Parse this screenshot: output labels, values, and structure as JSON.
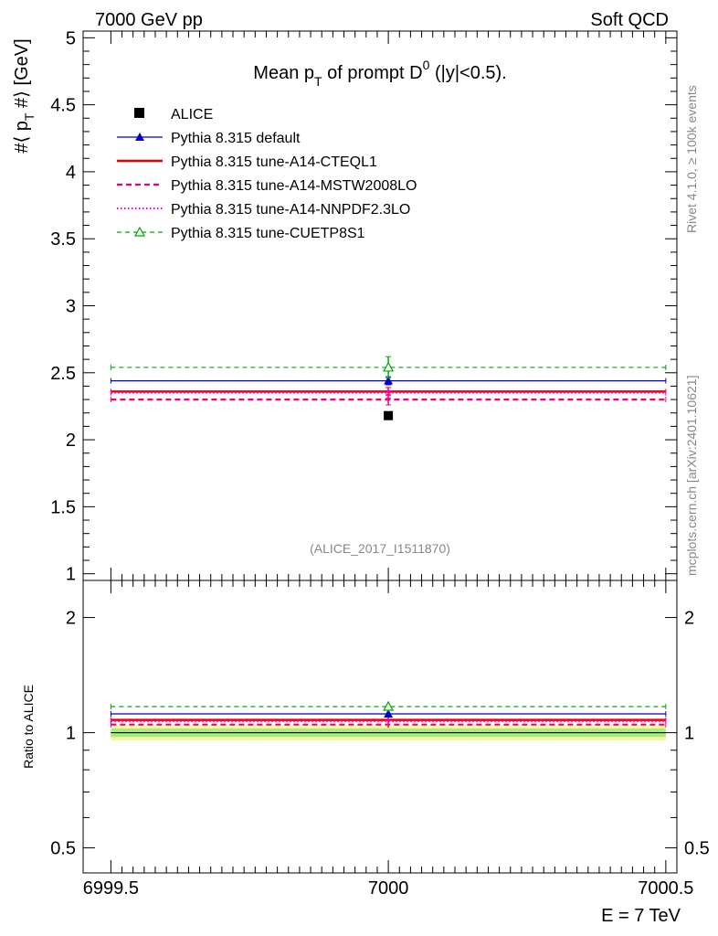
{
  "header": {
    "left": "7000 GeV pp",
    "right": "Soft QCD"
  },
  "side": {
    "rivet": "Rivet 4.1.0, ≥ 100k events",
    "mcplots": "mcplots.cern.ch [arXiv:2401.10621]"
  },
  "chart_data": [
    {
      "type": "line",
      "panel": "main",
      "title_parts": {
        "pre": "Mean p",
        "sub": "T",
        "mid": " of prompt D",
        "sup": "0",
        "post": " (|y|<0.5)."
      },
      "ylabel_parts": {
        "pre": "#⟨ p",
        "sub": "T",
        "post": " #⟩ [GeV]"
      },
      "ylim": [
        0.95,
        5.05
      ],
      "yticks": [
        1,
        1.5,
        2,
        2.5,
        3,
        3.5,
        4,
        4.5,
        5
      ],
      "ytick_labels": [
        "1",
        "1.5",
        "2",
        "2.5",
        "3",
        "3.5",
        "4",
        "4.5",
        "5"
      ],
      "xlim": [
        6999.45,
        7000.52
      ],
      "watermark": "(ALICE_2017_I1511870)",
      "series": [
        {
          "name": "ALICE",
          "color": "#000000",
          "style": "data",
          "x": 7000,
          "y": 2.18
        },
        {
          "name": "Pythia 8.315 default",
          "color": "#0000cc",
          "style": "solid-thin",
          "marker": "filled-triangle",
          "x": [
            6999.5,
            7000.5
          ],
          "y": 2.44,
          "err": 0.03
        },
        {
          "name": "Pythia 8.315 tune-A14-CTEQL1",
          "color": "#ee0000",
          "style": "solid-thick",
          "x": [
            6999.5,
            7000.5
          ],
          "y": 2.36,
          "err": 0.03
        },
        {
          "name": "Pythia 8.315 tune-A14-MSTW2008LO",
          "color": "#ee0077",
          "style": "dashed",
          "x": [
            6999.5,
            7000.5
          ],
          "y": 2.3,
          "err": 0.04
        },
        {
          "name": "Pythia 8.315 tune-A14-NNPDF2.3LO",
          "color": "#ff00cc",
          "style": "dotted",
          "x": [
            6999.5,
            7000.5
          ],
          "y": 2.35,
          "err": 0.04
        },
        {
          "name": "Pythia 8.315 tune-CUETP8S1",
          "color": "#00aa00",
          "style": "dashed-thin",
          "marker": "open-triangle",
          "x": [
            6999.5,
            7000.5
          ],
          "y": 2.54,
          "err": 0.08
        }
      ]
    },
    {
      "type": "line",
      "panel": "ratio",
      "ylabel": "Ratio to ALICE",
      "ylim": [
        0.43,
        2.5
      ],
      "yscale": "log",
      "yticks": [
        0.5,
        1,
        2
      ],
      "ytick_labels": [
        "0.5",
        "1",
        "2"
      ],
      "xlim": [
        6999.45,
        7000.52
      ],
      "xticks": [
        6999.5,
        7000,
        7000.5
      ],
      "xtick_labels": [
        "6999.5",
        "7000",
        "7000.5"
      ],
      "xlabel": "E = 7 TeV",
      "band": {
        "inner": [
          0.975,
          1.025
        ],
        "outer": [
          0.955,
          1.045
        ]
      },
      "series": [
        {
          "name": "Pythia 8.315 default",
          "color": "#0000cc",
          "y": 1.12,
          "err": 0.015
        },
        {
          "name": "Pythia 8.315 tune-A14-CTEQL1",
          "color": "#ee0000",
          "y": 1.08,
          "err": 0.015
        },
        {
          "name": "Pythia 8.315 tune-A14-MSTW2008LO",
          "color": "#ee0077",
          "y": 1.05,
          "err": 0.02
        },
        {
          "name": "Pythia 8.315 tune-A14-NNPDF2.3LO",
          "color": "#ff00cc",
          "y": 1.07,
          "err": 0.02
        },
        {
          "name": "Pythia 8.315 tune-CUETP8S1",
          "color": "#00aa00",
          "y": 1.17,
          "err": 0.035
        }
      ]
    }
  ]
}
